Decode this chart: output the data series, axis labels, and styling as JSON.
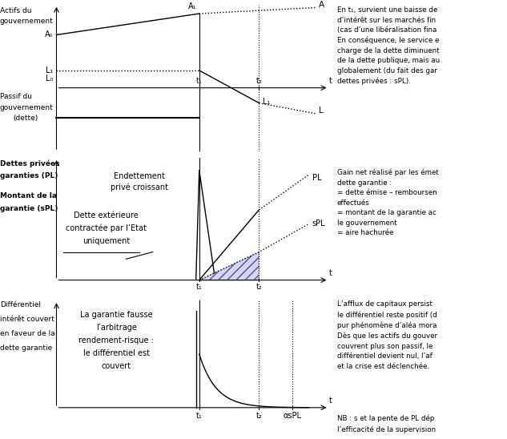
{
  "background": "#ffffff",
  "t1": 0.6,
  "t2": 0.78,
  "panel1_ylabel_line1": "Actifs du",
  "panel1_ylabel_line2": "gouvernement",
  "panel1_A0_label": "A₀",
  "panel1_A1_label": "A₁",
  "panel1_A_label": "A",
  "panel1_L1_label": "L₁",
  "panel1_L0_label": "L₀",
  "panel1_passif_line1": "Passif du",
  "panel1_passif_line2": "gouvernement",
  "panel1_passif_line3": "(dette)",
  "panel1_L1b_label": "L₁",
  "panel1_L_label": "L",
  "panel2_ylabel_line1": "Dettes privées",
  "panel2_ylabel_line2": "garanties (PL)",
  "panel2_ylabel_line3": "Montant de la",
  "panel2_ylabel_line4": "garantie (sPL)",
  "panel2_text1": "Endettement",
  "panel2_text2": "privé croissant",
  "panel2_text3": "Dette extérieure",
  "panel2_text4": "contractée par l’Etat",
  "panel2_text5": "uniquement",
  "panel2_PL_label": "PL",
  "panel2_sPL_label": "sPL",
  "panel3_ylabel_line1": "Différentiel",
  "panel3_ylabel_line2": "intérêt couvert",
  "panel3_ylabel_line3": "en faveur de la",
  "panel3_ylabel_line4": "dette garantie",
  "panel3_text1": "La garantie fausse",
  "panel3_text2": "l’arbitrage",
  "panel3_text3": "rendement-risque :",
  "panel3_text4": "le différentiel est",
  "panel3_text5": "couvert",
  "panel3_aspl_label": "αsPL",
  "t_label": "t",
  "t1_label": "t₁",
  "t2_label": "t₂",
  "right_text1": "En t₁, survient une baisse de\nd’intérêt sur les marchés fin\n(cas d’une libéralisation fina\nEn conséquence, le service e\ncharge de la dette diminuent\nde la dette publique, mais au\nglobalement (du fait des gar\ndettes privées : sPL).",
  "right_text2": "Gain net réalisé par les émet\ndette garantie :\n= dette émise – remboursen\neffectués\n= montant de la garantie ac\nle gouvernement\n= aire hachurée",
  "right_text3": "L’afflux de capitaux persist\nle différentiel reste positif (d\npur phénomène d’aléa mora\nDès que les actifs du gouver\ncouvrent plus son passif, le\ndifférentiel devient nul, l’af\net la crise est déclenchée.",
  "right_text4": "NB : s et la pente de PL dép\nl’efficacité de la supervision"
}
